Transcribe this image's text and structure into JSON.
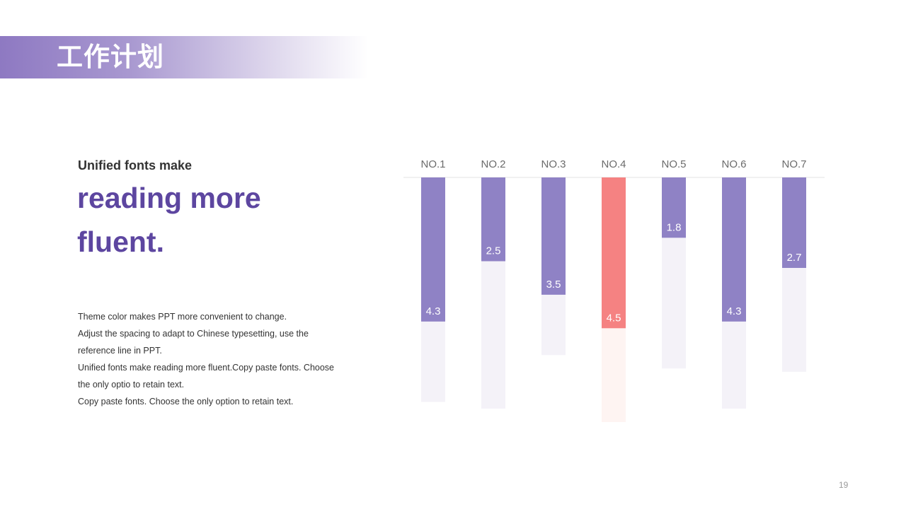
{
  "slide": {
    "title": "工作计划",
    "page_number": "19"
  },
  "lead": {
    "small": "Unified fonts make",
    "big_line1": "reading more",
    "big_line2": "fluent."
  },
  "body_lines": [
    "Theme color makes PPT more convenient  to change.",
    "Adjust the spacing to adapt to Chinese typesetting, use the",
    "reference line in PPT.",
    "Unified  fonts make reading more fluent.Copy paste fonts. Choose",
    "the only optio to retain text.",
    "Copy paste  fonts. Choose the only option to retain text."
  ],
  "colors": {
    "accent": "#8f82c5",
    "highlight": "#f58282",
    "track": "#f4f2f8",
    "highlight_track": "#fef4f2",
    "title_text": "#5d46a0"
  },
  "chart_data": {
    "type": "bar",
    "orientation": "vertical-downward",
    "categories": [
      "NO.1",
      "NO.2",
      "NO.3",
      "NO.4",
      "NO.5",
      "NO.6",
      "NO.7"
    ],
    "values": [
      4.3,
      2.5,
      3.5,
      4.5,
      1.8,
      4.3,
      2.7
    ],
    "highlight_index": 3,
    "ylim": [
      0,
      7.3
    ],
    "track_totals": [
      6.7,
      6.9,
      5.3,
      7.3,
      5.7,
      6.9,
      5.8
    ],
    "grid": false,
    "legend": "none"
  }
}
